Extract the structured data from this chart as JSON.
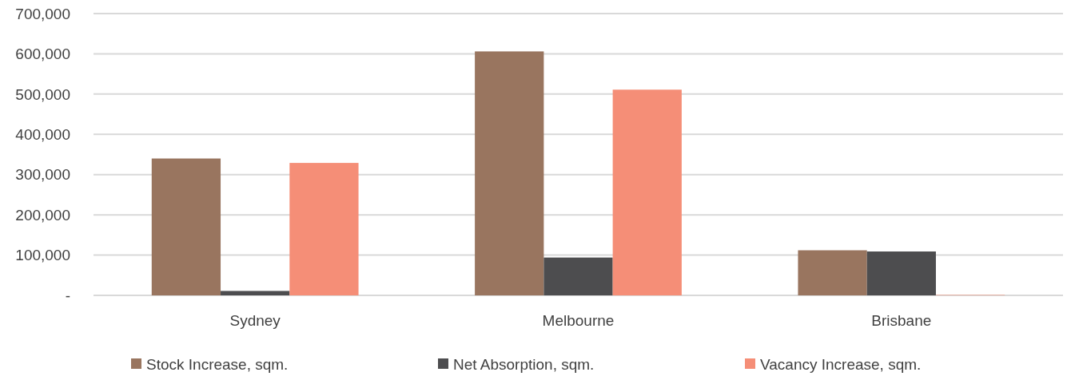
{
  "chart_data": {
    "type": "bar",
    "categories": [
      "Sydney",
      "Melbourne",
      "Brisbane"
    ],
    "series": [
      {
        "name": "Stock Increase, sqm.",
        "color": "#99755f",
        "values": [
          340000,
          606000,
          112000
        ]
      },
      {
        "name": "Net Absorption, sqm.",
        "color": "#4d4d4f",
        "values": [
          11000,
          94000,
          109000
        ]
      },
      {
        "name": "Vacancy Increase, sqm.",
        "color": "#f58e77",
        "values": [
          329000,
          511000,
          1000
        ]
      }
    ],
    "ylim": [
      0,
      700000
    ],
    "yticks": [
      {
        "value": 0,
        "label": "-"
      },
      {
        "value": 100000,
        "label": "100,000"
      },
      {
        "value": 200000,
        "label": "200,000"
      },
      {
        "value": 300000,
        "label": "300,000"
      },
      {
        "value": 400000,
        "label": "400,000"
      },
      {
        "value": 500000,
        "label": "500,000"
      },
      {
        "value": 600000,
        "label": "600,000"
      },
      {
        "value": 700000,
        "label": "700,000"
      }
    ],
    "grid": "y",
    "legend": "bottom"
  }
}
